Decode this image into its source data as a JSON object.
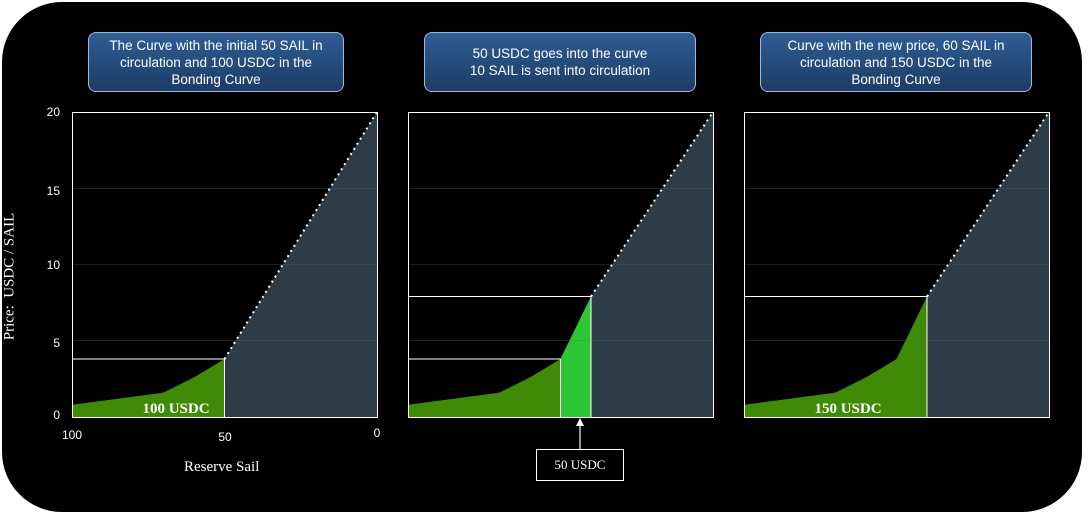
{
  "panels": [
    {
      "title": "The Curve with the initial 50 SAIL in\ncirculation and 100 USDC in the\nBonding Curve",
      "fill_label": "100 USDC"
    },
    {
      "title": "50 USDC goes into the curve\n10 SAIL is sent into circulation",
      "fill_label": ""
    },
    {
      "title": "Curve with the new price, 60 SAIL in\ncirculation and 150 USDC in the\nBonding Curve",
      "fill_label": "150 USDC"
    }
  ],
  "y_axis": {
    "label": "Price:  USDC / SAIL",
    "ticks": [
      "20",
      "15",
      "10",
      "5",
      "0"
    ]
  },
  "x_axis": {
    "label": "Reserve Sail",
    "ticks": [
      "100",
      "50",
      "0"
    ]
  },
  "callout": {
    "label": "50 USDC"
  },
  "colors": {
    "background": "#000000",
    "reserve_area": "#2e3c47",
    "curve_fill": "#3f8a06",
    "new_fill": "#2ec634",
    "title_box": "#2a5486"
  },
  "chart_data": [
    {
      "type": "area",
      "title": "The Curve with the initial 50 SAIL in circulation and 100 USDC in the Bonding Curve",
      "xlabel": "Reserve Sail",
      "ylabel": "Price:  USDC / SAIL",
      "xlim": [
        100,
        0
      ],
      "ylim": [
        0,
        20
      ],
      "series": [
        {
          "x": [
            100,
            70,
            60,
            50
          ],
          "values": [
            0.8,
            1.6,
            2.6,
            3.8
          ]
        }
      ],
      "line": {
        "x": [
          50,
          0
        ],
        "values": [
          3.8,
          20
        ]
      },
      "filled_amount": "100 USDC"
    },
    {
      "type": "area",
      "title": "50 USDC goes into the curve 10 SAIL is sent into circulation",
      "xlim": [
        100,
        0
      ],
      "ylim": [
        0,
        20
      ],
      "series": [
        {
          "x": [
            100,
            70,
            60,
            50,
            40
          ],
          "values": [
            0.8,
            1.6,
            2.6,
            3.8,
            7.9
          ]
        }
      ],
      "line": {
        "x": [
          40,
          0
        ],
        "values": [
          7.9,
          20
        ]
      },
      "added_amount": "50 USDC"
    },
    {
      "type": "area",
      "title": "Curve with the new price, 60 SAIL in circulation and 150 USDC in the Bonding Curve",
      "xlim": [
        100,
        0
      ],
      "ylim": [
        0,
        20
      ],
      "series": [
        {
          "x": [
            100,
            70,
            60,
            50,
            40
          ],
          "values": [
            0.8,
            1.6,
            2.6,
            3.8,
            7.9
          ]
        }
      ],
      "line": {
        "x": [
          40,
          0
        ],
        "values": [
          7.9,
          20
        ]
      },
      "filled_amount": "150 USDC"
    }
  ]
}
